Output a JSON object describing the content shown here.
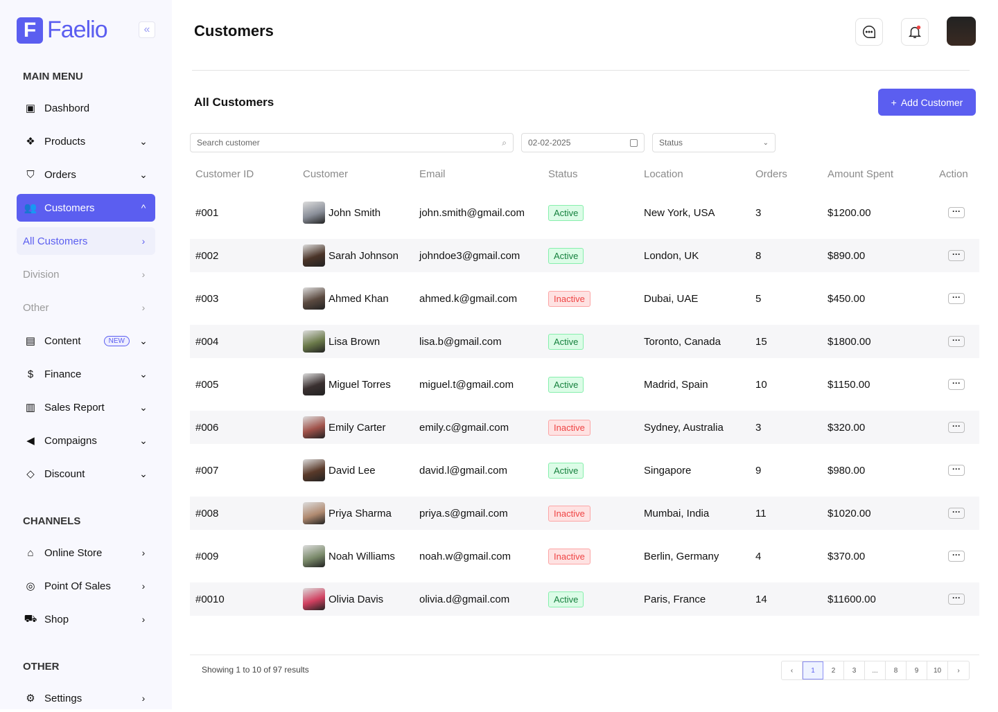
{
  "brand": {
    "logo_letter": "F",
    "name": "Faelio"
  },
  "sidebar": {
    "main_menu_label": "MAIN MENU",
    "items": [
      {
        "label": "Dashbord",
        "icon": "grid-icon",
        "chev": ""
      },
      {
        "label": "Products",
        "icon": "box-icon",
        "chev": "⌄"
      },
      {
        "label": "Orders",
        "icon": "basket-icon",
        "chev": "⌄"
      },
      {
        "label": "Customers",
        "icon": "users-icon",
        "chev": "^"
      },
      {
        "label": "All Customers",
        "chev": "›"
      },
      {
        "label": "Division",
        "chev": "›"
      },
      {
        "label": "Other",
        "chev": "›"
      },
      {
        "label": "Content",
        "icon": "document-icon",
        "chev": "⌄",
        "badge": "NEW"
      },
      {
        "label": "Finance",
        "icon": "dollar-icon",
        "chev": "⌄"
      },
      {
        "label": "Sales Report",
        "icon": "chart-icon",
        "chev": "⌄"
      },
      {
        "label": "Compaigns",
        "icon": "megaphone-icon",
        "chev": "⌄"
      },
      {
        "label": "Discount",
        "icon": "tag-icon",
        "chev": "⌄"
      }
    ],
    "channels_label": "CHANNELS",
    "channels": [
      {
        "label": "Online Store",
        "icon": "store-icon",
        "chev": "›"
      },
      {
        "label": "Point Of Sales",
        "icon": "pos-icon",
        "chev": "›"
      },
      {
        "label": "Shop",
        "icon": "cart-icon",
        "chev": "›"
      }
    ],
    "other_label": "OTHER",
    "other": [
      {
        "label": "Settings",
        "icon": "settings-icon",
        "chev": "›"
      }
    ]
  },
  "header": {
    "title": "Customers"
  },
  "section": {
    "title": "All Customers",
    "add_button": "Add Customer"
  },
  "filters": {
    "search_placeholder": "Search customer",
    "date": "02-02-2025",
    "status": "Status"
  },
  "table": {
    "columns": [
      "Customer ID",
      "Customer",
      "Email",
      "Status",
      "Location",
      "Orders",
      "Amount Spent",
      "Action"
    ],
    "rows": [
      {
        "id": "#001",
        "name": "John Smith",
        "email": "john.smith@gmail.com",
        "status": "Active",
        "location": "New York, USA",
        "orders": "3",
        "amount": "$1200.00",
        "avatar": "#8a8f99"
      },
      {
        "id": "#002",
        "name": "Sarah Johnson",
        "email": "johndoe3@gmail.com",
        "status": "Active",
        "location": "London, UK",
        "orders": "8",
        "amount": "$890.00",
        "avatar": "#4a3428"
      },
      {
        "id": "#003",
        "name": "Ahmed Khan",
        "email": "ahmed.k@gmail.com",
        "status": "Inactive",
        "location": "Dubai, UAE",
        "orders": "5",
        "amount": "$450.00",
        "avatar": "#5b4a40"
      },
      {
        "id": "#004",
        "name": "Lisa Brown",
        "email": "lisa.b@gmail.com",
        "status": "Active",
        "location": "Toronto, Canada",
        "orders": "15",
        "amount": "$1800.00",
        "avatar": "#6b7a4a"
      },
      {
        "id": "#005",
        "name": "Miguel Torres",
        "email": "miguel.t@gmail.com",
        "status": "Active",
        "location": "Madrid, Spain",
        "orders": "10",
        "amount": "$1150.00",
        "avatar": "#3a3030"
      },
      {
        "id": "#006",
        "name": "Emily Carter",
        "email": "emily.c@gmail.com",
        "status": "Inactive",
        "location": "Sydney, Australia",
        "orders": "3",
        "amount": "$320.00",
        "avatar": "#a0524a"
      },
      {
        "id": "#007",
        "name": "David Lee",
        "email": "david.l@gmail.com",
        "status": "Active",
        "location": "Singapore",
        "orders": "9",
        "amount": "$980.00",
        "avatar": "#5a3a2a"
      },
      {
        "id": "#008",
        "name": "Priya Sharma",
        "email": "priya.s@gmail.com",
        "status": "Inactive",
        "location": "Mumbai, India",
        "orders": "11",
        "amount": "$1020.00",
        "avatar": "#b08a70"
      },
      {
        "id": "#009",
        "name": "Noah Williams",
        "email": "noah.w@gmail.com",
        "status": "Inactive",
        "location": "Berlin, Germany",
        "orders": "4",
        "amount": "$370.00",
        "avatar": "#7a8a6a"
      },
      {
        "id": "#0010",
        "name": "Olivia Davis",
        "email": "olivia.d@gmail.com",
        "status": "Active",
        "location": "Paris, France",
        "orders": "14",
        "amount": "$11600.00",
        "avatar": "#d04060"
      }
    ]
  },
  "footer": {
    "showing": "Showing 1 to 10 of 97 results",
    "pages": [
      "‹",
      "1",
      "2",
      "3",
      "...",
      "8",
      "9",
      "10",
      "›"
    ],
    "current_page": "1"
  },
  "colors": {
    "accent": "#5b5ef0"
  }
}
